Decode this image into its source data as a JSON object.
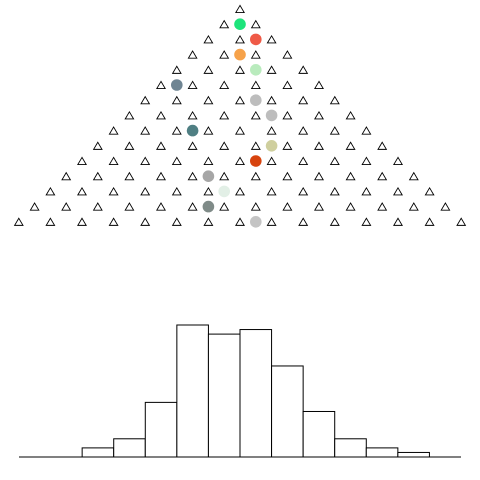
{
  "board": {
    "rows": 15,
    "peg_glyph": "triangle-outline-icon",
    "balls": [
      {
        "row": 1,
        "offset": 0,
        "color": "#1de47b"
      },
      {
        "row": 2,
        "offset": 1,
        "color": "#ef5a47"
      },
      {
        "row": 3,
        "offset": 0,
        "color": "#f6a24a"
      },
      {
        "row": 4,
        "offset": 1,
        "color": "#b9ebbd"
      },
      {
        "row": 5,
        "offset": -4,
        "color": "#6f8593"
      },
      {
        "row": 6,
        "offset": 1,
        "color": "#bdbdbd"
      },
      {
        "row": 7,
        "offset": 2,
        "color": "#bdbdbd"
      },
      {
        "row": 8,
        "offset": -3,
        "color": "#4f7f83"
      },
      {
        "row": 9,
        "offset": 2,
        "color": "#cfcf9e"
      },
      {
        "row": 10,
        "offset": 1,
        "color": "#d7430e"
      },
      {
        "row": 11,
        "offset": -2,
        "color": "#a6a6a6"
      },
      {
        "row": 12,
        "offset": -1,
        "color": "#e2efe6"
      },
      {
        "row": 13,
        "offset": -2,
        "color": "#7f8b88"
      },
      {
        "row": 14,
        "offset": 1,
        "color": "#c4c4c4"
      }
    ]
  },
  "histogram": {
    "bins": 14,
    "counts": [
      0,
      0,
      2,
      4,
      12,
      29,
      27,
      28,
      20,
      10,
      4,
      2,
      1,
      0
    ],
    "max": 29,
    "stroke": "#000000",
    "fill": "#ffffff"
  }
}
